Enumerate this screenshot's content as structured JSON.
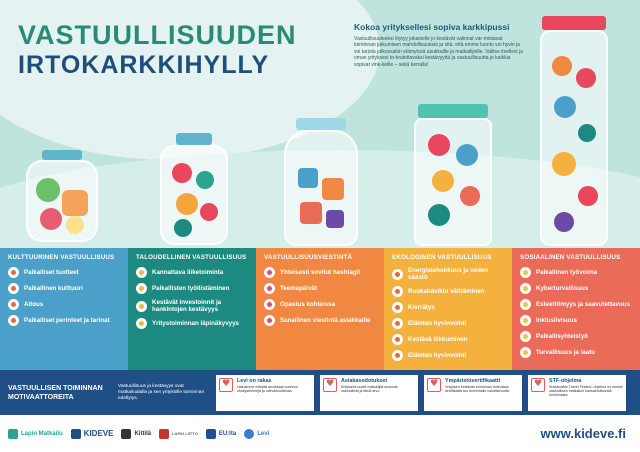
{
  "title": {
    "line1": "VASTUULLISUUDEN",
    "line2": "IRTOKARKKIHYLLY"
  },
  "intro": {
    "heading": "Kokoa yrityksellesi sopiva karkkipussi",
    "body": "Vastuullisuuteeksi löytyy jokaiselle jo kestävät valinnat var-mistavat toiminnan jatkumisen mahdollisuuksia ja sitä, että emme luonto voi hyvin ja voi tarjota jatkossakin elämyksiä asukkaille ja matkailijoille. Valitse itsellesi ja oman yrityksesi to-teutettavaksi kestävyyttä ja vastuullisuutta jo kaikkia sopivat vink-keille – sekä kerralla!"
  },
  "columns": [
    {
      "heading": "KULTTUURINEN VASTUULLISUUS",
      "items": [
        "Paikalliset tuotteet",
        "Paikallinen kulttuuri",
        "Aitous",
        "Paikalliset perinteet ja tarinat"
      ]
    },
    {
      "heading": "TALOUDELLINEN VASTUULLISUUS",
      "items": [
        "Kannattava liiketoiminta",
        "Paikallisten työllistäminen",
        "Kestävät investoinnit ja hankintojen kestävyys",
        "Yritystoiminnan läpinäkyvyys"
      ]
    },
    {
      "heading": "VASTUULLISUUSVIESTINTÄ",
      "items": [
        "Yhteisesti sovitut hashtagit",
        "Teemapäivät",
        "Opastus kohteissa",
        "Sanallinen viestintä asiakkaille"
      ]
    },
    {
      "heading": "EKOLOGINEN VASTUULLISUUS",
      "items": [
        "Energiatehokkuus ja veden säästö",
        "Ruokahävikin välttäminen",
        "Kierrätys",
        "Eläinten hyvinvointi",
        "Kestävä liikkuminen",
        "Eläinten hyvinvointi"
      ]
    },
    {
      "heading": "SOSIAALINEN VASTUULLISUUS",
      "items": [
        "Paikallinen työvoima",
        "Kyberturvallisuus",
        "Esteettömyys ja saavutettavuus",
        "Inklusiivisuus",
        "Paikallisyhteistyö",
        "Turvallisuus ja laatu"
      ]
    }
  ],
  "band": {
    "title": "VASTUULLISEN TOIMINNAN MOTIVAATTOREITA",
    "desc": "Vastuullisuus ja kestävyys ovat matkailualalla ja sen yrityksille toiminnan edellytys.",
    "certs": [
      {
        "title": "Levi on rakas",
        "text": "Haluamme edistää arvokkaan luonnon ekosysteemejä ja tulevaisuudessa."
      },
      {
        "title": "Asiakasodotukset",
        "text": "Erityisesti uudet matkailijat suosivat vastuullisia ja tämä arvo."
      },
      {
        "title": "Ympäristösertifikaatti",
        "text": "Yrityksen kestävän toiminnan todentava sertifikaatti tuo toiminnalle uskottavuutta."
      },
      {
        "title": "STF-ohjelma",
        "text": "Sustainable Travel Finland -ohjelma on merkki vastuullisen matkailun kansainvälisestä toiminnasta."
      }
    ]
  },
  "footer": {
    "logos": [
      "Lapin Matkailu",
      "KIDEVE",
      "Kittilä",
      "LAPIN LIITTO",
      "EU:lta",
      "Levi"
    ],
    "url": "www.kideve.fi"
  }
}
